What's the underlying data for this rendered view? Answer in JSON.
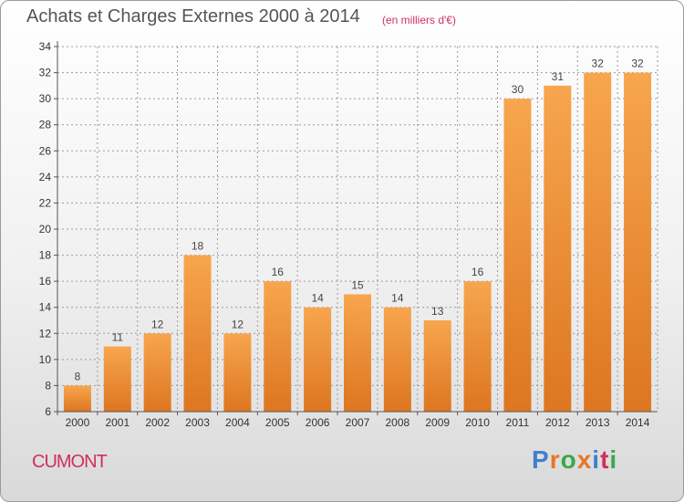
{
  "header": {
    "title": "Achats et Charges Externes 2000 à 2014",
    "subtitle": "(en milliers d'€)"
  },
  "footer": {
    "commune": "CUMONT",
    "brand_letters": [
      "P",
      "r",
      "o",
      "x",
      "i",
      "t",
      "i"
    ],
    "brand_colors": [
      "#3f7fd0",
      "#e8742a",
      "#3aa84a",
      "#e8742a",
      "#3f7fd0",
      "#d0305a",
      "#3aa84a"
    ]
  },
  "colors": {
    "bar_top": "#f7a64e",
    "bar_bottom": "#dd7620",
    "grid": "#9a9a9a",
    "axis": "#555555"
  },
  "chart_data": {
    "type": "bar",
    "title": "Achats et Charges Externes 2000 à 2014",
    "subtitle": "(en milliers d'€)",
    "categories": [
      "2000",
      "2001",
      "2002",
      "2003",
      "2004",
      "2005",
      "2006",
      "2007",
      "2008",
      "2009",
      "2010",
      "2011",
      "2012",
      "2013",
      "2014"
    ],
    "values": [
      8,
      11,
      12,
      18,
      12,
      16,
      14,
      15,
      14,
      13,
      16,
      30,
      31,
      32,
      32
    ],
    "ylim": [
      6,
      34
    ],
    "yticks": [
      6,
      8,
      10,
      12,
      14,
      16,
      18,
      20,
      22,
      24,
      26,
      28,
      30,
      32,
      34
    ],
    "grid": true,
    "data_labels": true
  }
}
